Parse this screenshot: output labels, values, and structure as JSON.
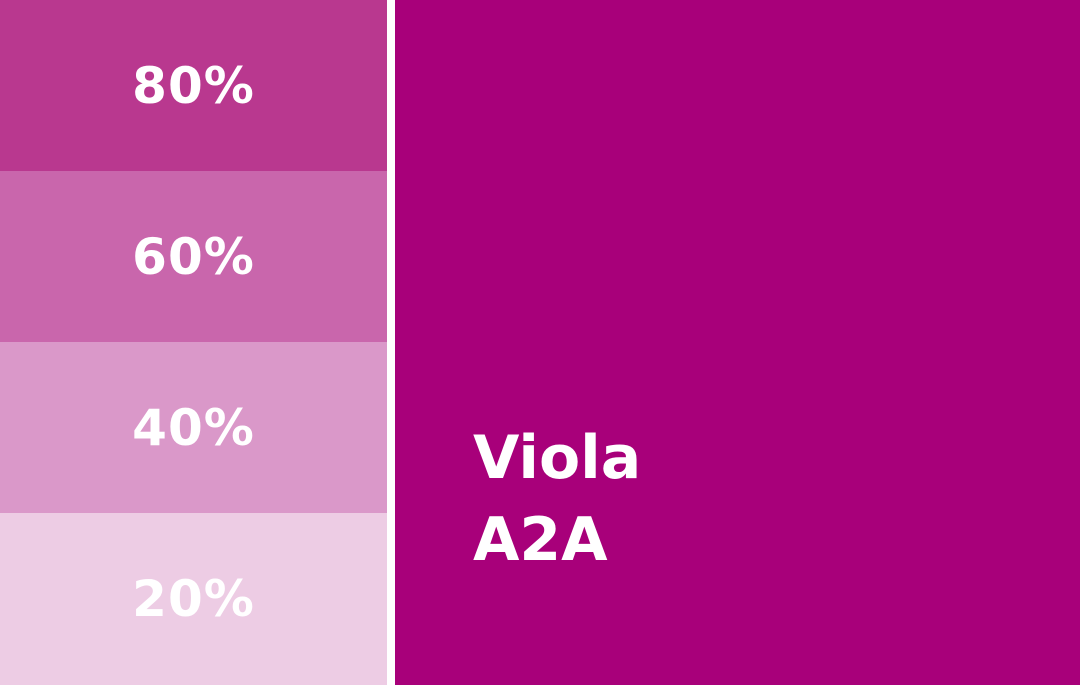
{
  "swatches": [
    {
      "label": "80%"
    },
    {
      "label": "60%"
    },
    {
      "label": "40%"
    },
    {
      "label": "20%"
    }
  ],
  "main": {
    "name": "Viola",
    "code": "A2A"
  }
}
